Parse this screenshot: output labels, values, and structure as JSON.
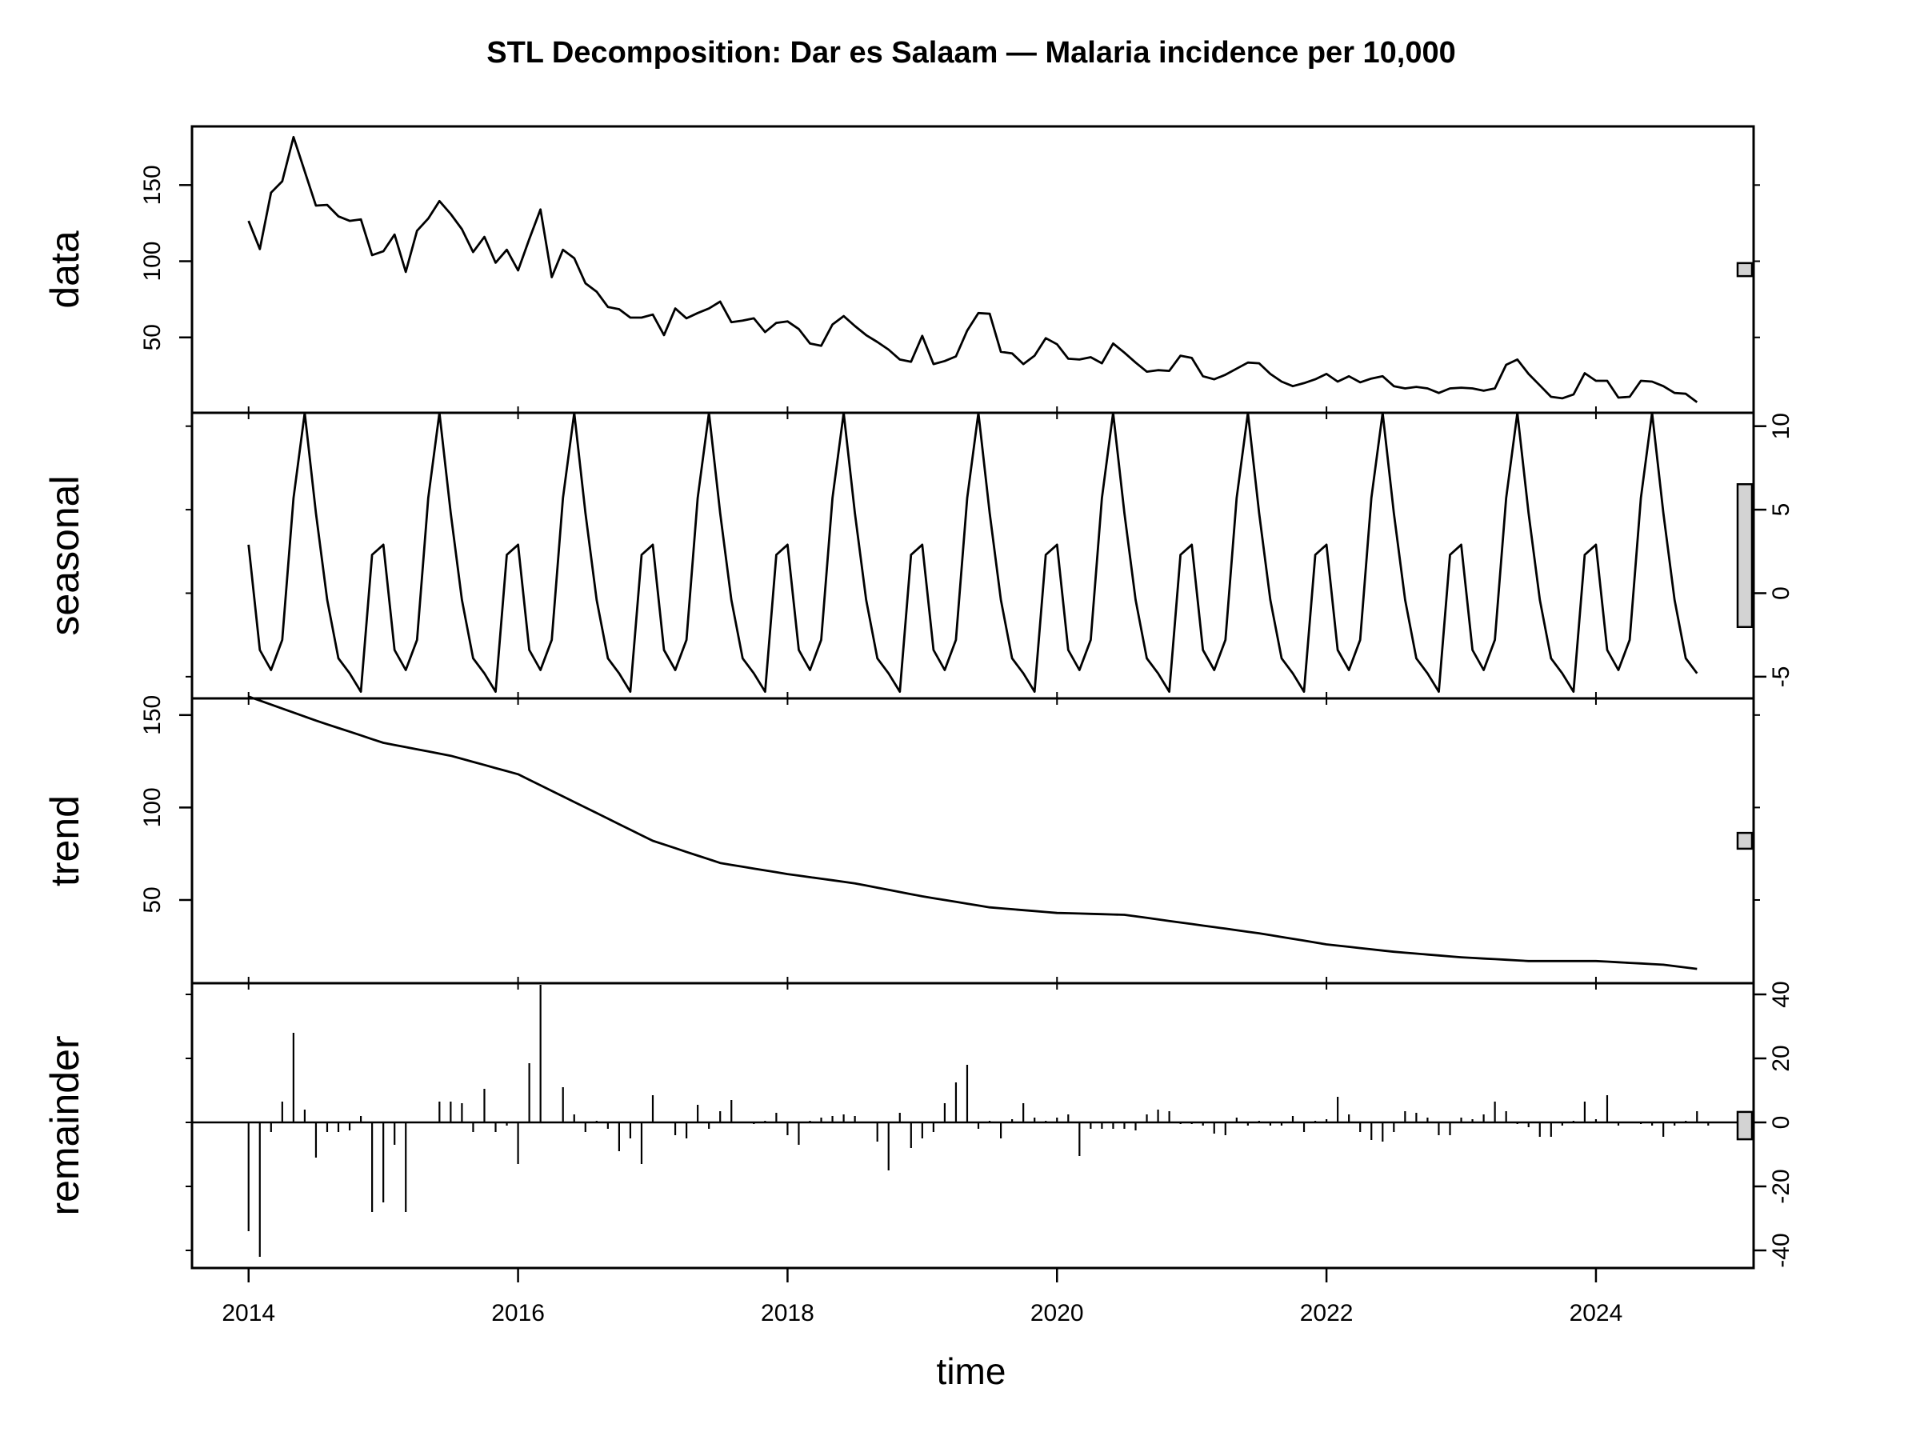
{
  "chart_data": {
    "type": "line",
    "title": "STL Decomposition: Dar es Salaam — Malaria incidence per 10,000",
    "xlabel": "time",
    "x_ticks": [
      "2014",
      "2016",
      "2018",
      "2020",
      "2022",
      "2024"
    ],
    "x_range": [
      2013.58,
      2025.17
    ],
    "time": {
      "start": "2014-01",
      "frequency": "monthly"
    },
    "scale_bar_fill": "#d3d3d3",
    "panels": [
      {
        "name": "data",
        "label": "data",
        "style": "line",
        "tick_side": "left",
        "ticks": [
          "50",
          "100",
          "150"
        ],
        "ylim": [
          0.5,
          188.5
        ],
        "values": [
          126.5,
          108,
          145,
          152.5,
          181.5,
          159,
          136.5,
          137,
          129.5,
          126.5,
          127.5,
          104,
          106.5,
          117.5,
          93,
          120,
          128,
          139.5,
          131,
          121,
          106,
          116,
          99,
          107.5,
          94,
          114.5,
          134,
          89.5,
          107.5,
          102,
          85.5,
          80,
          70,
          68.5,
          63,
          63,
          65,
          51.5,
          69,
          62.5,
          66,
          69,
          73.5,
          60,
          61,
          62.5,
          53.5,
          59.5,
          60.5,
          55.5,
          46,
          44.5,
          58.5,
          64,
          57.5,
          51.5,
          47,
          42,
          35.5,
          34,
          51,
          32.5,
          34.5,
          37.5,
          54.5,
          66,
          65.5,
          40.5,
          39.5,
          32.5,
          38,
          49.5,
          45.5,
          36,
          35.5,
          37,
          33,
          46,
          40,
          33.5,
          27.5,
          28.5,
          28,
          38,
          36.5,
          24.5,
          22.5,
          25.5,
          29.5,
          33.5,
          33,
          26,
          21,
          18,
          20,
          22.5,
          26,
          21,
          24.5,
          20.5,
          23,
          24.5,
          18,
          16.5,
          17.5,
          16.5,
          13.5,
          16.5,
          17,
          16.5,
          15,
          16.5,
          32,
          35.5,
          26,
          18.5,
          11,
          10,
          12.5,
          26.5,
          21.5,
          21.5,
          10.5,
          11,
          21.5,
          21,
          18,
          13.5,
          13,
          7.5
        ]
      },
      {
        "name": "seasonal",
        "label": "seasonal",
        "style": "line",
        "tick_side": "right",
        "ticks": [
          "-5",
          "0",
          "5",
          "10"
        ],
        "ylim": [
          -6.3,
          10.8
        ],
        "values_by_month": [
          2.9,
          -3.4,
          -4.6,
          -2.8,
          5.7,
          10.8,
          4.8,
          -0.4,
          -3.9,
          -4.8,
          -5.9,
          2.3
        ]
      },
      {
        "name": "trend",
        "label": "trend",
        "style": "line",
        "tick_side": "left",
        "ticks": [
          "50",
          "100",
          "150"
        ],
        "ylim": [
          5,
          159
        ],
        "key_points": [
          [
            0,
            160
          ],
          [
            6,
            147
          ],
          [
            12,
            135
          ],
          [
            18,
            128
          ],
          [
            24,
            118
          ],
          [
            30,
            100
          ],
          [
            36,
            82
          ],
          [
            42,
            70
          ],
          [
            48,
            64
          ],
          [
            54,
            59
          ],
          [
            60,
            52
          ],
          [
            66,
            46
          ],
          [
            72,
            43
          ],
          [
            78,
            42
          ],
          [
            84,
            37
          ],
          [
            90,
            32
          ],
          [
            96,
            26
          ],
          [
            102,
            22
          ],
          [
            108,
            19
          ],
          [
            114,
            17
          ],
          [
            120,
            17
          ],
          [
            126,
            15
          ],
          [
            130,
            12
          ]
        ]
      },
      {
        "name": "remainder",
        "label": "remainder",
        "style": "histogram",
        "tick_side": "right",
        "ticks": [
          "-40",
          "-20",
          "0",
          "20",
          "40"
        ],
        "ylim": [
          -45.5,
          43.5
        ],
        "values": [
          -34,
          -42,
          -3,
          6.5,
          28,
          4,
          -11,
          -3,
          -3,
          -2.5,
          2,
          -28,
          -25,
          -7,
          -28,
          0,
          0,
          6.5,
          6.5,
          6,
          -3,
          10.5,
          -3,
          -1,
          -13,
          18.5,
          43,
          0,
          11,
          2.5,
          -3,
          0.5,
          -2,
          -9,
          -5,
          -13,
          8.5,
          0,
          -4,
          -5,
          5.5,
          -2,
          3.5,
          7,
          0,
          -0.5,
          0.5,
          3,
          -4,
          -7,
          0.5,
          1.5,
          2,
          2.5,
          2,
          0,
          -6,
          -15,
          3,
          -8,
          -5,
          -3,
          6,
          12.5,
          18,
          -2,
          0.5,
          -5,
          1,
          6,
          1.5,
          0.5,
          1.5,
          2.5,
          -10.5,
          -2,
          -2,
          -2,
          -2,
          -2.5,
          2.5,
          4,
          3.5,
          -0.5,
          -0.5,
          -1,
          -3.5,
          -4,
          1.5,
          -1,
          0.5,
          -1,
          -1,
          2,
          -3,
          0.5,
          1,
          8,
          2.5,
          -3,
          -5.5,
          -6,
          -3,
          3.5,
          3,
          1.5,
          -4,
          -4,
          1.5,
          1,
          2.5,
          6.5,
          3.5,
          -0.5,
          -1.5,
          -4.5,
          -4.5,
          -1,
          0.5,
          6.5,
          1,
          8.5,
          -1,
          0,
          -0.5,
          -1,
          -4.5,
          -1,
          0.5,
          3.5,
          -1
        ]
      }
    ]
  }
}
